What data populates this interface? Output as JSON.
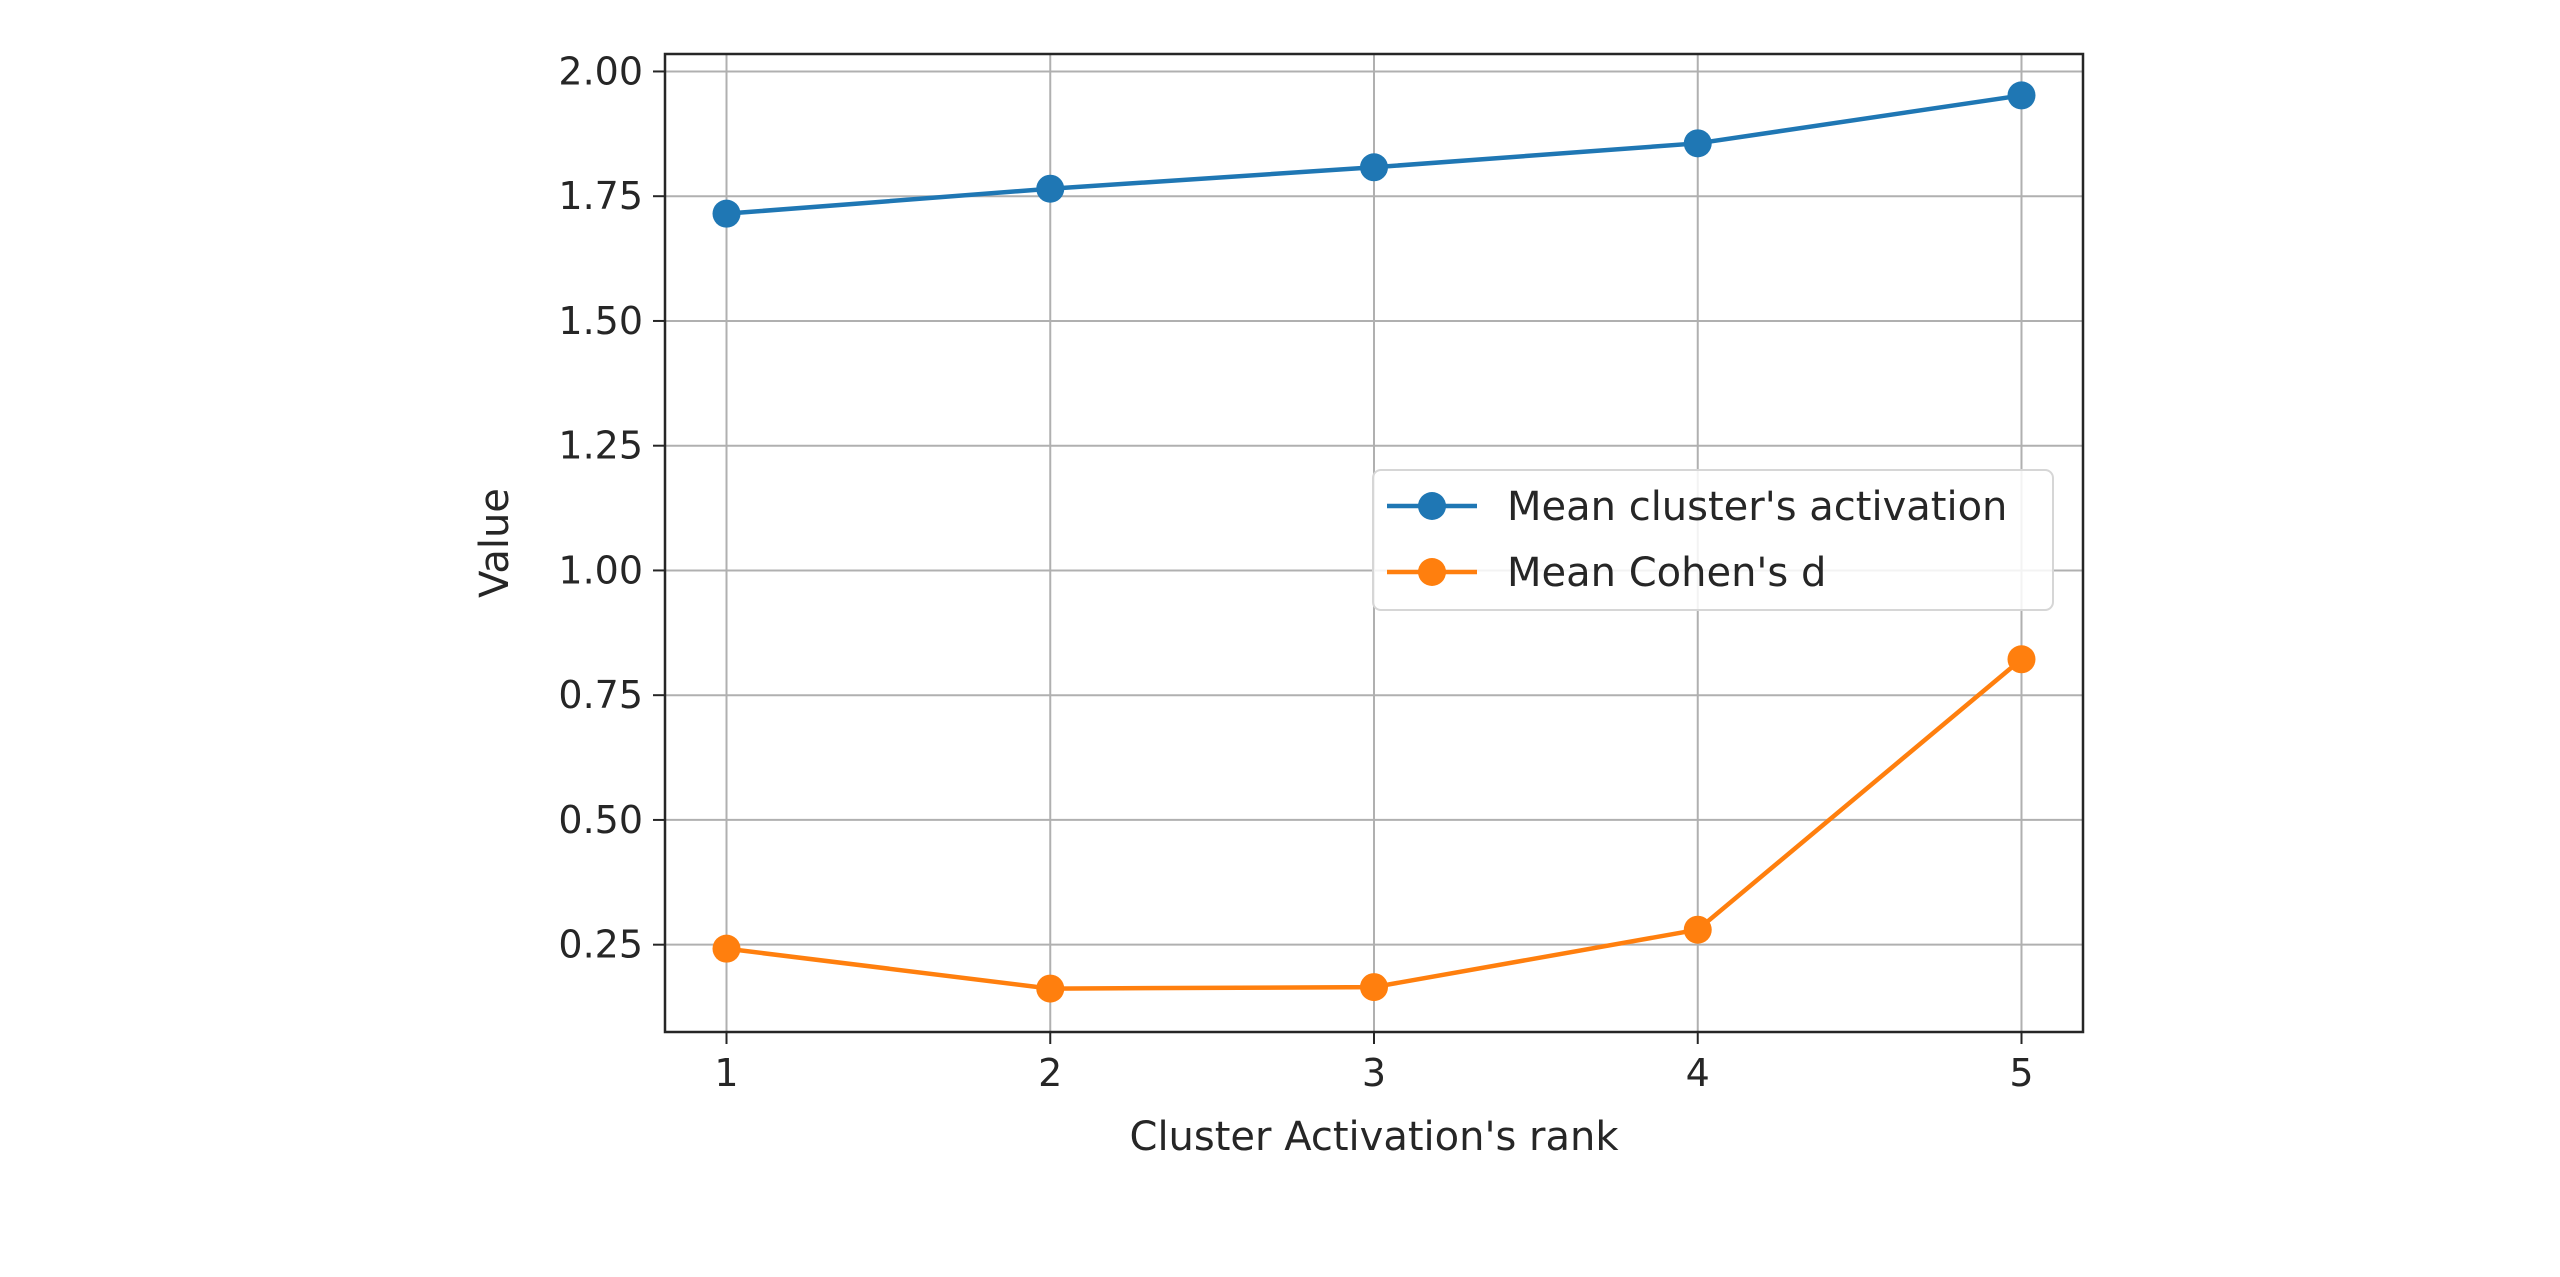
{
  "chart_data": {
    "type": "line",
    "xlabel": "Cluster Activation's rank",
    "ylabel": "Value",
    "x": [
      1,
      2,
      3,
      4,
      5
    ],
    "xticks": [
      "1",
      "2",
      "3",
      "4",
      "5"
    ],
    "xlim": [
      0.81,
      5.19
    ],
    "ylim": [
      0.075,
      2.035
    ],
    "yticks": [
      "0.25",
      "0.50",
      "0.75",
      "1.00",
      "1.25",
      "1.50",
      "1.75",
      "2.00"
    ],
    "grid": true,
    "legend_position": "center-right",
    "series": [
      {
        "name": "Mean cluster's activation",
        "color": "#1f77b4",
        "values": [
          1.715,
          1.765,
          1.808,
          1.856,
          1.952
        ]
      },
      {
        "name": "Mean Cohen's d",
        "color": "#ff7f0e",
        "values": [
          0.242,
          0.162,
          0.165,
          0.28,
          0.822
        ]
      }
    ]
  }
}
